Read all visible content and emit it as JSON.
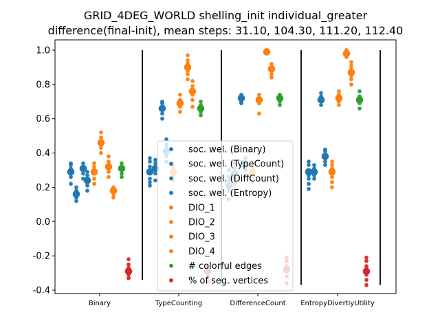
{
  "chart_data": {
    "type": "scatter",
    "title_line1": "GRID_4DEG_WORLD shelling_init individual_greater",
    "title_line2": "difference(final-init), mean steps: 31.10, 104.30, 111.20, 112.40",
    "xlabel": "",
    "ylabel": "",
    "ylim": [
      -0.42,
      1.06
    ],
    "yticks": [
      "-0.4",
      "-0.2",
      "0.0",
      "0.2",
      "0.4",
      "0.6",
      "0.8",
      "1.0"
    ],
    "categories": [
      "Binary",
      "TypeCounting",
      "DifferenceCount",
      "EntropyDivertiyUtility"
    ],
    "legend_position": "lower-center",
    "separator_lines": [
      {
        "after": "Binary",
        "y_range": [
          -0.34,
          1.0
        ]
      },
      {
        "after": "TypeCounting",
        "y_range": [
          -0.36,
          1.0
        ]
      },
      {
        "after": "DifferenceCount",
        "y_range": [
          -0.37,
          1.0
        ]
      },
      {
        "after": "EntropyDivertiyUtility",
        "y_range": [
          -0.37,
          1.0
        ]
      }
    ],
    "series": [
      {
        "name": "soc. wel. (Binary)",
        "color": "#1f77b4",
        "means": [
          0.29,
          0.29,
          0.21,
          0.29
        ],
        "points": [
          [
            0.22,
            0.26,
            0.28,
            0.3,
            0.31,
            0.33,
            0.34
          ],
          [
            0.21,
            0.23,
            0.25,
            0.28,
            0.3,
            0.32,
            0.35,
            0.37
          ],
          [
            0.13,
            0.18,
            0.2,
            0.22,
            0.24,
            0.26,
            0.3
          ],
          [
            0.19,
            0.22,
            0.25,
            0.27,
            0.3,
            0.33,
            0.35
          ]
        ]
      },
      {
        "name": "soc. wel. (TypeCount)",
        "color": "#1f77b4",
        "means": [
          0.16,
          0.31,
          0.28,
          0.29
        ],
        "points": [
          [
            0.12,
            0.14,
            0.16,
            0.18,
            0.2
          ],
          [
            0.24,
            0.28,
            0.3,
            0.32,
            0.34,
            0.36
          ],
          [
            0.22,
            0.25,
            0.28,
            0.31,
            0.34
          ],
          [
            0.25,
            0.27,
            0.29,
            0.31,
            0.33
          ]
        ]
      },
      {
        "name": "soc. wel. (DiffCount)",
        "color": "#1f77b4",
        "means": [
          0.31,
          0.66,
          0.72,
          0.71
        ],
        "points": [
          [
            0.25,
            0.28,
            0.3,
            0.32,
            0.34
          ],
          [
            0.6,
            0.63,
            0.65,
            0.67,
            0.69,
            0.7
          ],
          [
            0.69,
            0.7,
            0.71,
            0.72,
            0.73,
            0.74
          ],
          [
            0.68,
            0.7,
            0.71,
            0.73,
            0.75
          ]
        ]
      },
      {
        "name": "soc. wel. (Entropy)",
        "color": "#1f77b4",
        "means": [
          0.24,
          0.41,
          0.33,
          0.38
        ],
        "points": [
          [
            0.18,
            0.21,
            0.23,
            0.25,
            0.27,
            0.29
          ],
          [
            0.35,
            0.38,
            0.4,
            0.43,
            0.45,
            0.48
          ],
          [
            0.27,
            0.3,
            0.33,
            0.35,
            0.37
          ],
          [
            0.33,
            0.35,
            0.37,
            0.39,
            0.41,
            0.42
          ]
        ]
      },
      {
        "name": "DIO_1",
        "color": "#ff7f0e",
        "means": [
          0.29,
          0.29,
          0.29,
          0.29
        ],
        "points": [
          [
            0.22,
            0.25,
            0.28,
            0.3,
            0.32,
            0.34
          ],
          [
            0.24,
            0.27,
            0.29,
            0.31,
            0.33
          ],
          [
            0.23,
            0.26,
            0.29,
            0.31,
            0.33
          ],
          [
            0.2,
            0.23,
            0.26,
            0.29,
            0.31,
            0.33,
            0.35
          ]
        ]
      },
      {
        "name": "DIO_2",
        "color": "#ff7f0e",
        "means": [
          0.46,
          0.69,
          0.71,
          0.72
        ],
        "points": [
          [
            0.4,
            0.43,
            0.45,
            0.47,
            0.49,
            0.52
          ],
          [
            0.64,
            0.67,
            0.69,
            0.71,
            0.74
          ],
          [
            0.63,
            0.69,
            0.7,
            0.72,
            0.74
          ],
          [
            0.68,
            0.7,
            0.72,
            0.74,
            0.76
          ]
        ]
      },
      {
        "name": "DIO_3",
        "color": "#ff7f0e",
        "means": [
          0.32,
          0.9,
          0.99,
          0.98
        ],
        "points": [
          [
            0.26,
            0.29,
            0.31,
            0.33,
            0.35,
            0.38
          ],
          [
            0.83,
            0.86,
            0.88,
            0.9,
            0.92,
            0.94,
            0.97
          ],
          [
            0.98,
            0.99,
            1.0
          ],
          [
            0.96,
            0.97,
            0.98,
            0.99,
            1.0
          ]
        ]
      },
      {
        "name": "DIO_4",
        "color": "#ff7f0e",
        "means": [
          0.18,
          0.76,
          0.89,
          0.87
        ],
        "points": [
          [
            0.14,
            0.16,
            0.18,
            0.2
          ],
          [
            0.67,
            0.71,
            0.74,
            0.77,
            0.79,
            0.82
          ],
          [
            0.84,
            0.86,
            0.88,
            0.9,
            0.92
          ],
          [
            0.8,
            0.83,
            0.85,
            0.87,
            0.89,
            0.91,
            0.93
          ]
        ]
      },
      {
        "name": "# colorful edges",
        "color": "#2ca02c",
        "means": [
          0.31,
          0.66,
          0.72,
          0.71
        ],
        "points": [
          [
            0.26,
            0.28,
            0.3,
            0.32,
            0.34
          ],
          [
            0.62,
            0.64,
            0.66,
            0.68,
            0.7
          ],
          [
            0.68,
            0.7,
            0.71,
            0.73,
            0.74
          ],
          [
            0.66,
            0.69,
            0.71,
            0.73,
            0.76
          ]
        ]
      },
      {
        "name": "% of seg. vertices",
        "color": "#d62728",
        "means": [
          -0.29,
          -0.29,
          -0.28,
          -0.29
        ],
        "points": [
          [
            -0.33,
            -0.31,
            -0.29,
            -0.27,
            -0.25,
            -0.22
          ],
          [
            -0.35,
            -0.32,
            -0.3,
            -0.28,
            -0.26
          ],
          [
            -0.36,
            -0.32,
            -0.29,
            -0.26,
            -0.23,
            -0.21
          ],
          [
            -0.37,
            -0.34,
            -0.31,
            -0.29,
            -0.26,
            -0.23,
            -0.21
          ]
        ]
      }
    ]
  }
}
